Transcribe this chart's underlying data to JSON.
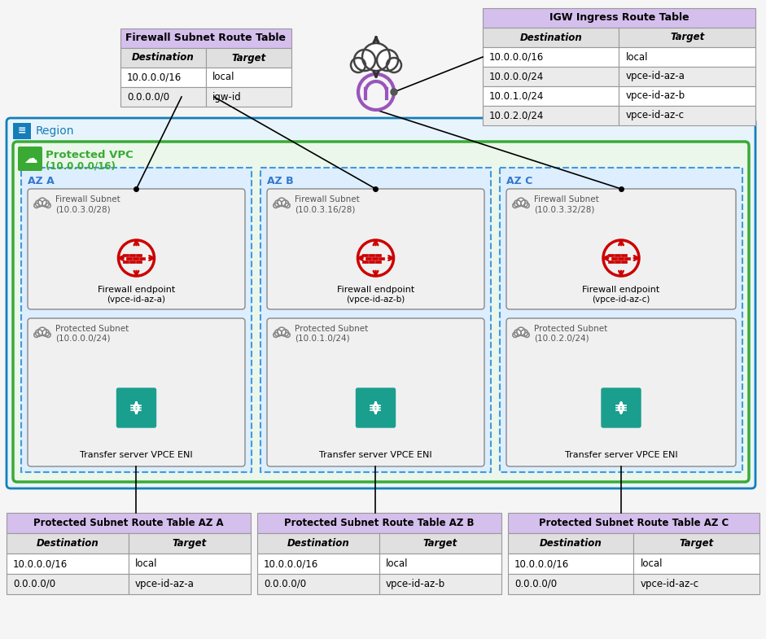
{
  "bg_color": "#f5f5f5",
  "region_border_color": "#147EBA",
  "region_bg": "#e8f4fb",
  "vpc_border_color": "#3AAA35",
  "vpc_bg": "#eaf7ea",
  "az_border_color": "#4499DD",
  "az_bg": "#ddeeff",
  "subnet_bg": "#f0f0f0",
  "subnet_border": "#888888",
  "table_header_bg": "#d5bfed",
  "table_alt_bg": "#e8e8e8",
  "table_white_bg": "#ffffff",
  "firewall_table": {
    "title": "Firewall Subnet Route Table",
    "columns": [
      "Destination",
      "Target"
    ],
    "rows": [
      [
        "10.0.0.0/16",
        "local"
      ],
      [
        "0.0.0.0/0",
        "igw-id"
      ]
    ]
  },
  "igw_table": {
    "title": "IGW Ingress Route Table",
    "columns": [
      "Destination",
      "Target"
    ],
    "rows": [
      [
        "10.0.0.0/16",
        "local"
      ],
      [
        "10.0.0.0/24",
        "vpce-id-az-a"
      ],
      [
        "10.0.1.0/24",
        "vpce-id-az-b"
      ],
      [
        "10.0.2.0/24",
        "vpce-id-az-c"
      ]
    ]
  },
  "protected_tables": [
    {
      "title": "Protected Subnet Route Table AZ A",
      "columns": [
        "Destination",
        "Target"
      ],
      "rows": [
        [
          "10.0.0.0/16",
          "local"
        ],
        [
          "0.0.0.0/0",
          "vpce-id-az-a"
        ]
      ]
    },
    {
      "title": "Protected Subnet Route Table AZ B",
      "columns": [
        "Destination",
        "Target"
      ],
      "rows": [
        [
          "10.0.0.0/16",
          "local"
        ],
        [
          "0.0.0.0/0",
          "vpce-id-az-b"
        ]
      ]
    },
    {
      "title": "Protected Subnet Route Table AZ C",
      "columns": [
        "Destination",
        "Target"
      ],
      "rows": [
        [
          "10.0.0.0/16",
          "local"
        ],
        [
          "0.0.0.0/0",
          "vpce-id-az-c"
        ]
      ]
    }
  ],
  "azs": [
    {
      "label": "AZ A",
      "firewall_subnet": "Firewall Subnet\n(10.0.3.0/28)",
      "firewall_endpoint_line1": "Firewall endpoint",
      "firewall_endpoint_line2": "(vpce-id-az-a)",
      "protected_subnet": "Protected Subnet\n(10.0.0.0/24)",
      "transfer_server": "Transfer server VPCE ENI"
    },
    {
      "label": "AZ B",
      "firewall_subnet": "Firewall Subnet\n(10.0.3.16/28)",
      "firewall_endpoint_line1": "Firewall endpoint",
      "firewall_endpoint_line2": "(vpce-id-az-b)",
      "protected_subnet": "Protected Subnet\n(10.0.1.0/24)",
      "transfer_server": "Transfer server VPCE ENI"
    },
    {
      "label": "AZ C",
      "firewall_subnet": "Firewall Subnet\n(10.0.3.32/28)",
      "firewall_endpoint_line1": "Firewall endpoint",
      "firewall_endpoint_line2": "(vpce-id-az-c)",
      "protected_subnet": "Protected Subnet\n(10.0.2.0/24)",
      "transfer_server": "Transfer server VPCE ENI"
    }
  ]
}
